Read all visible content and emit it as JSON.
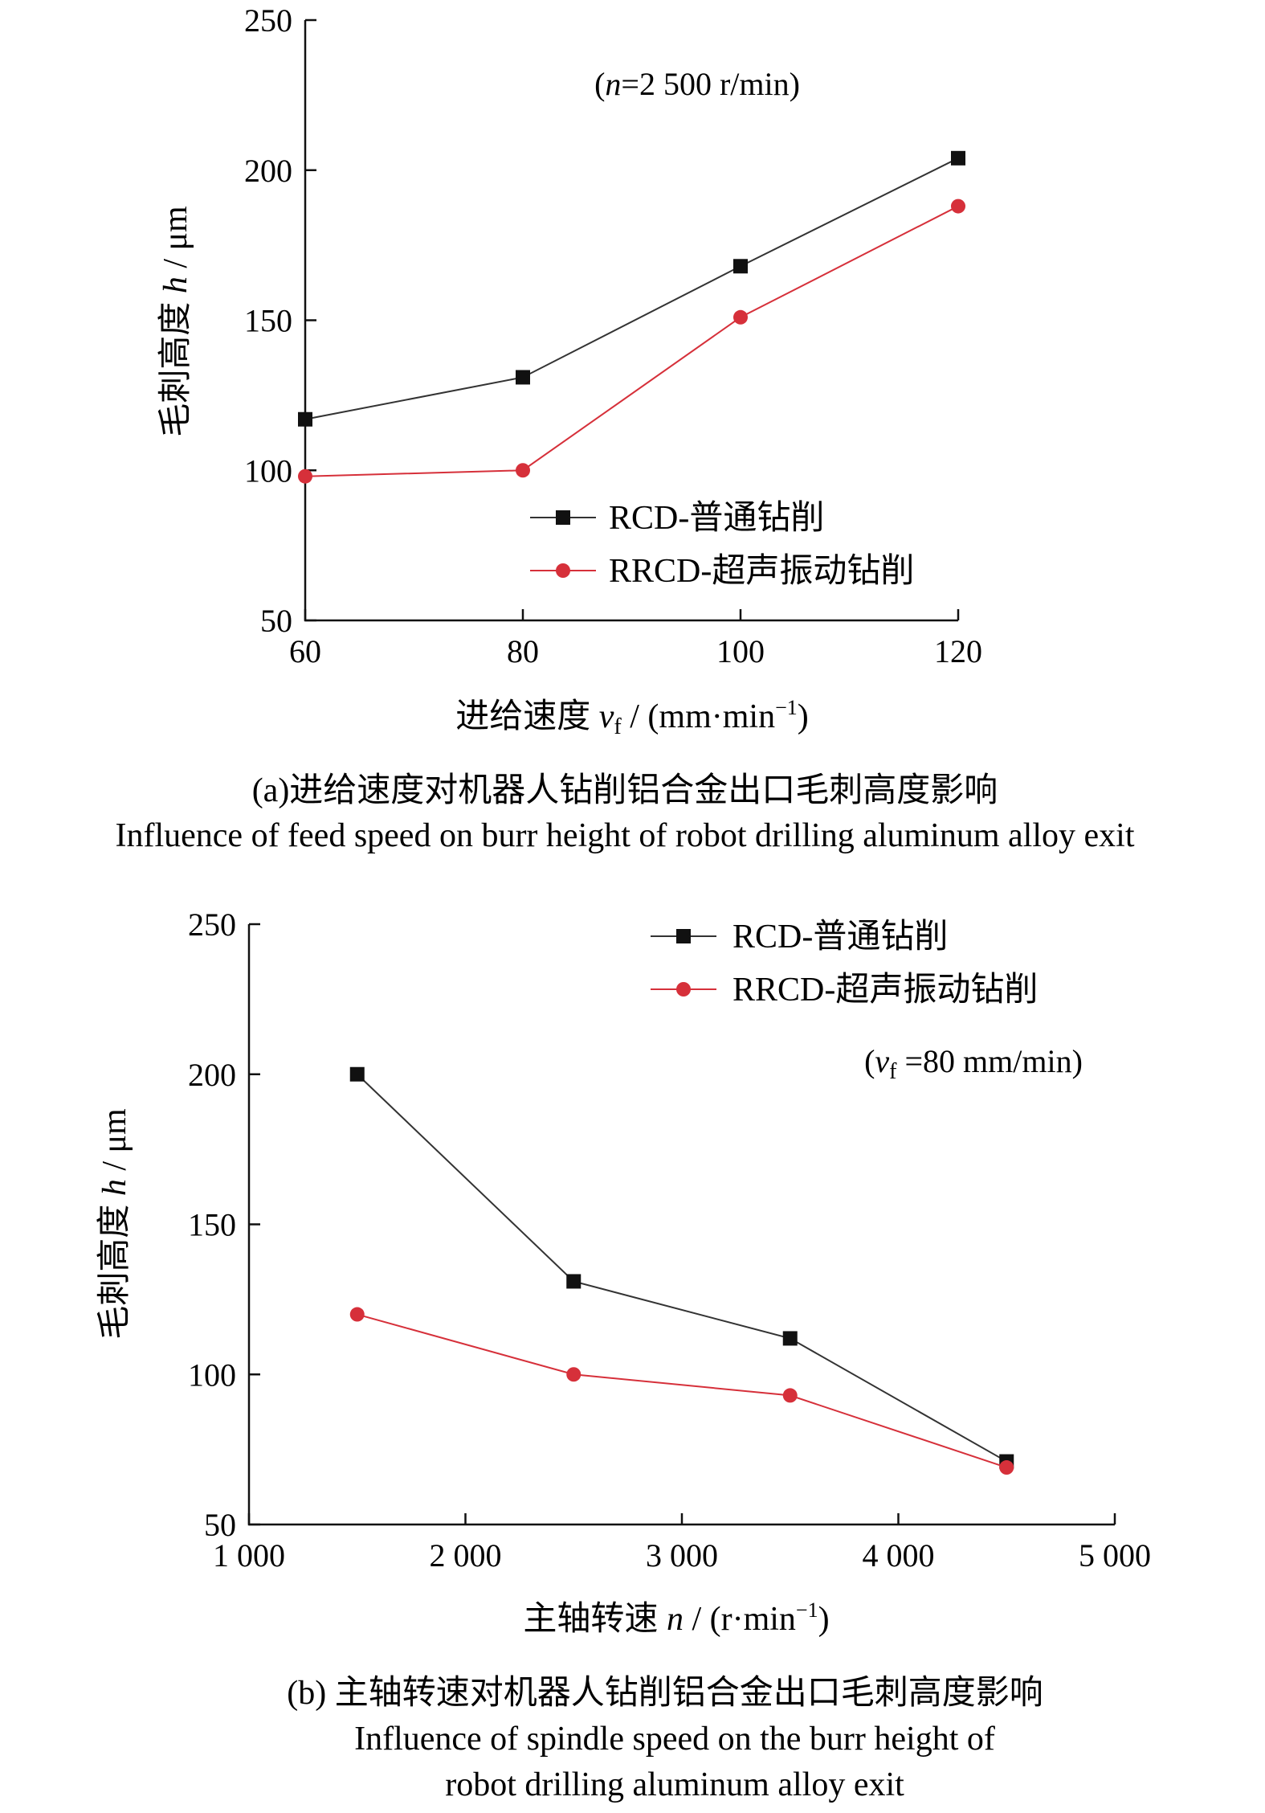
{
  "chart_data": [
    {
      "type": "line",
      "x": [
        60,
        80,
        100,
        120
      ],
      "xlim": [
        60,
        120
      ],
      "ylim": [
        50,
        250
      ],
      "xticks": [
        "60",
        "80",
        "100",
        "120"
      ],
      "yticks": [
        "50",
        "100",
        "150",
        "200",
        "250"
      ],
      "series": [
        {
          "name": "RCD-普通钻削",
          "color": "#333333",
          "marker": "square",
          "values": [
            117,
            131,
            168,
            204
          ]
        },
        {
          "name": "RRCD-超声振动钻削",
          "color": "#d6303a",
          "marker": "circle",
          "values": [
            98,
            100,
            151,
            188
          ]
        }
      ],
      "ylabel": "毛刺高度 h / μm",
      "xlabel": "进给速度 vf / (mm·min⁻¹)",
      "annotation": "(n=2 500 r/min)",
      "legend": "bottom-center",
      "caption_cn": "(a)进给速度对机器人钻削铝合金出口毛刺高度影响",
      "caption_en": "Influence of feed speed on burr height of robot drilling aluminum alloy exit"
    },
    {
      "type": "line",
      "x": [
        1500,
        2500,
        3500,
        4500
      ],
      "xlim": [
        1000,
        5000
      ],
      "ylim": [
        50,
        250
      ],
      "xticks": [
        "1 000",
        "2 000",
        "3 000",
        "4 000",
        "5 000"
      ],
      "yticks": [
        "50",
        "100",
        "150",
        "200",
        "250"
      ],
      "series": [
        {
          "name": "RCD-普通钻削",
          "color": "#333333",
          "marker": "square",
          "values": [
            200,
            131,
            112,
            71
          ]
        },
        {
          "name": "RRCD-超声振动钻削",
          "color": "#d6303a",
          "marker": "circle",
          "values": [
            120,
            100,
            93,
            69
          ]
        }
      ],
      "ylabel": "毛刺高度 h / μm",
      "xlabel": "主轴转速 n / (r·min⁻¹)",
      "annotation": "(vf =80 mm/min)",
      "legend": "top-right",
      "caption_cn": "(b) 主轴转速对机器人钻削铝合金出口毛刺高度影响",
      "caption_en_line1": "Influence of spindle speed on the burr height of",
      "caption_en_line2": "robot drilling aluminum alloy exit"
    }
  ]
}
